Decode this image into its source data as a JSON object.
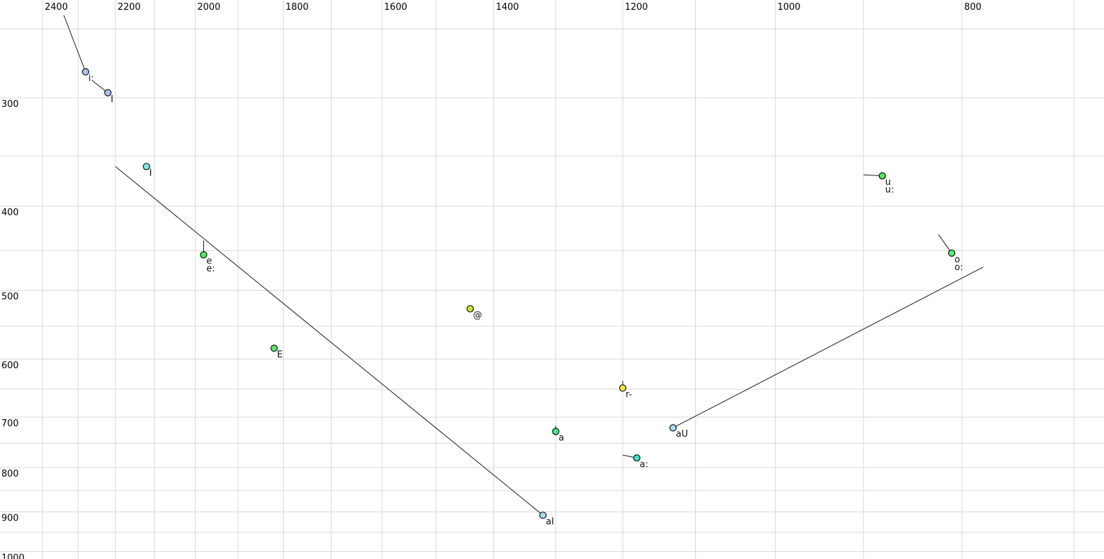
{
  "chart_data": {
    "type": "scatter",
    "title": "",
    "xlabel": "",
    "ylabel": "",
    "description": "Vowel formant chart: F2 (Hz) on x-axis reversed log scale, F1 (Hz) on y-axis reversed-growth log scale, SAMPA vowel labels with diphthong/glide trajectory lines",
    "grid": true,
    "colors": {
      "background": "#ffffff",
      "gridline": "#d9d9d9",
      "trajectory": "#1a1a1a",
      "marker_outline": "#000000",
      "tick_text": "#000000",
      "label_text": "#111111"
    },
    "x_axis": {
      "unit": "Hz",
      "scale": "log",
      "reversed": true,
      "tick_labels": [
        "2400",
        "2200",
        "2000",
        "1800",
        "1600",
        "1400",
        "1200",
        "1000",
        "800"
      ],
      "tick_values": [
        2400,
        2200,
        2000,
        1800,
        1600,
        1400,
        1200,
        1000,
        800
      ],
      "gridlines_from": 2400,
      "gridlines_to": 700,
      "gridline_step": 100,
      "label_position": "top"
    },
    "y_axis": {
      "unit": "Hz",
      "scale": "log",
      "tick_labels": [
        "300",
        "400",
        "500",
        "600",
        "700",
        "800",
        "900",
        "1000"
      ],
      "tick_values": [
        300,
        400,
        500,
        600,
        700,
        800,
        900,
        1000
      ],
      "gridlines_from": 250,
      "gridlines_to": 1000,
      "gridline_step": 50,
      "label_position": "left"
    },
    "points": [
      {
        "labels": [
          "i:"
        ],
        "f2": 2280,
        "f1": 280,
        "color": "#a9c4ec",
        "glide": {
          "f2": 2340,
          "f1": 241
        }
      },
      {
        "labels": [
          "I"
        ],
        "f2": 2220,
        "f1": 296,
        "color": "#a9c4ec",
        "glide": {
          "f2": 2260,
          "f1": 287
        }
      },
      {
        "labels": [
          "I"
        ],
        "f2": 2120,
        "f1": 360,
        "color": "#7ee9e1",
        "glide": null
      },
      {
        "labels": [
          "e",
          "e:"
        ],
        "f2": 1980,
        "f1": 455,
        "color": "#4fec66",
        "glide": {
          "f2": 1980,
          "f1": 438
        }
      },
      {
        "labels": [
          "E"
        ],
        "f2": 1820,
        "f1": 583,
        "color": "#4fec66",
        "glide": null
      },
      {
        "labels": [
          "@"
        ],
        "f2": 1440,
        "f1": 525,
        "color": "#cfe32e",
        "glide": null
      },
      {
        "labels": [
          "r-"
        ],
        "f2": 1200,
        "f1": 648,
        "color": "#f6e83a",
        "glide": {
          "f2": 1200,
          "f1": 636
        }
      },
      {
        "labels": [
          "a"
        ],
        "f2": 1300,
        "f1": 727,
        "color": "#45e78c",
        "glide": {
          "f2": 1300,
          "f1": 716
        }
      },
      {
        "labels": [
          "a:"
        ],
        "f2": 1180,
        "f1": 780,
        "color": "#47ddca",
        "glide": {
          "f2": 1200,
          "f1": 774
        }
      },
      {
        "labels": [
          "aI"
        ],
        "f2": 1320,
        "f1": 908,
        "color": "#a5dcee",
        "glide": {
          "f2": 2200,
          "f1": 360
        }
      },
      {
        "labels": [
          "aU"
        ],
        "f2": 1130,
        "f1": 720,
        "color": "#a5dcee",
        "glide": {
          "f2": 780,
          "f1": 470
        }
      },
      {
        "labels": [
          "u",
          "u:"
        ],
        "f2": 880,
        "f1": 369,
        "color": "#4fe84f",
        "glide": {
          "f2": 900,
          "f1": 368
        }
      },
      {
        "labels": [
          "o",
          "o:"
        ],
        "f2": 810,
        "f1": 453,
        "color": "#5ee87d",
        "glide": {
          "f2": 823,
          "f1": 431
        }
      }
    ]
  }
}
